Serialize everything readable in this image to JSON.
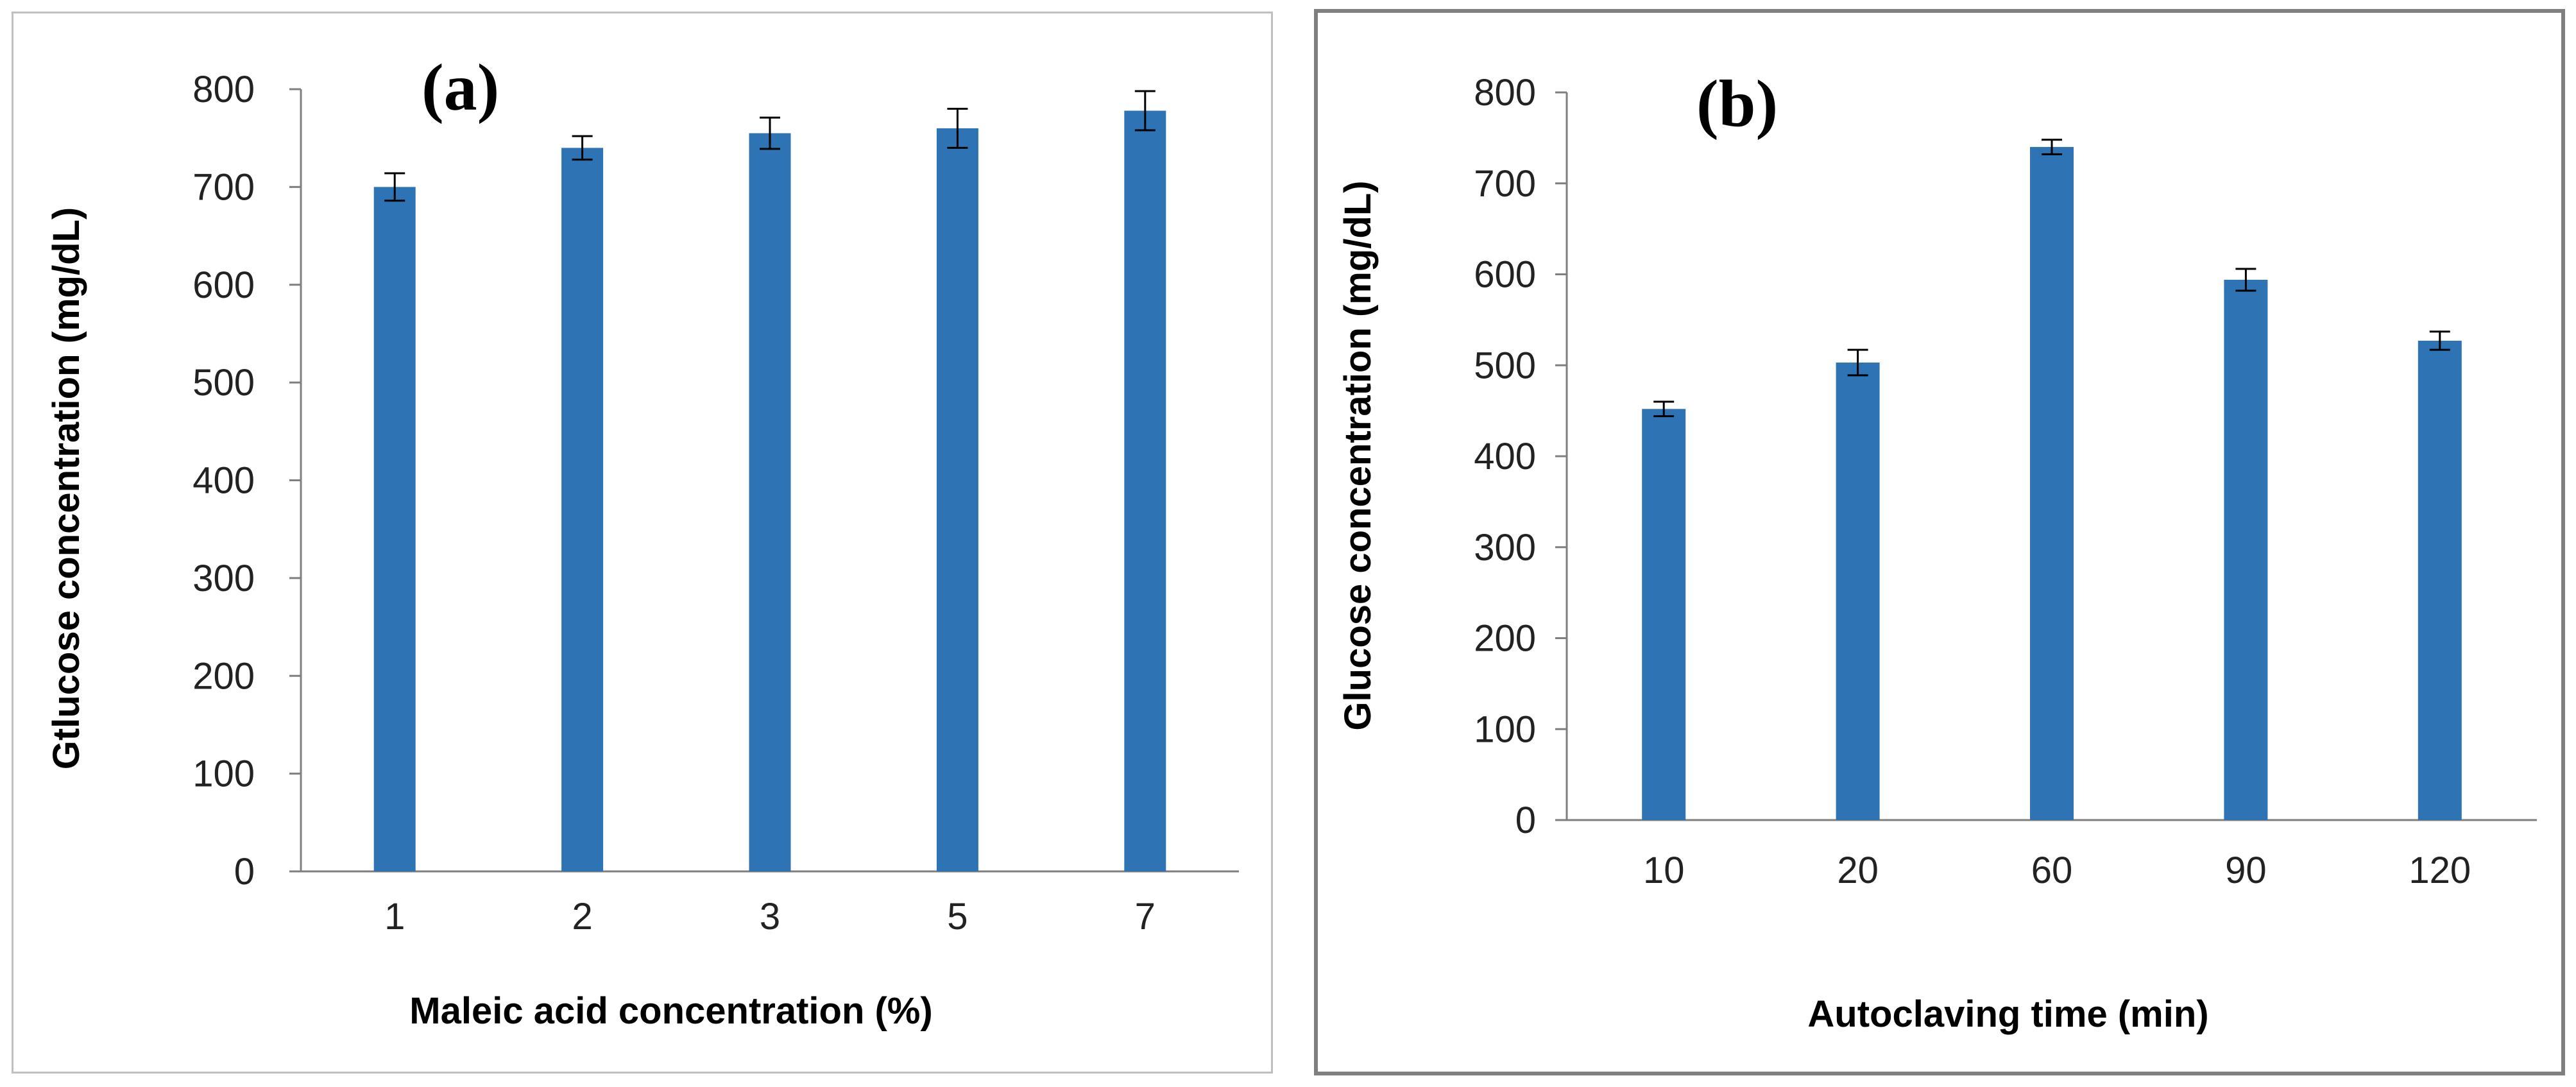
{
  "colors": {
    "bar": "#2e74b5",
    "axis": "#7f7f7f",
    "error": "#000000"
  },
  "chart_data": [
    {
      "type": "bar",
      "panel_label": "(a)",
      "categories": [
        "1",
        "2",
        "3",
        "5",
        "7"
      ],
      "values": [
        700,
        740,
        755,
        760,
        778
      ],
      "errors": [
        14,
        12,
        16,
        20,
        20
      ],
      "xlabel": "Maleic acid concentration (%)",
      "ylabel": "Gtlucose concentration (mg/dL)",
      "ylim": [
        0,
        800
      ],
      "yticks": [
        0,
        100,
        200,
        300,
        400,
        500,
        600,
        700,
        800
      ],
      "grid": false,
      "legend": "none"
    },
    {
      "type": "bar",
      "panel_label": "(b)",
      "categories": [
        "10",
        "20",
        "60",
        "90",
        "120"
      ],
      "values": [
        452,
        503,
        740,
        594,
        527
      ],
      "errors": [
        8,
        14,
        8,
        12,
        10
      ],
      "xlabel": "Autoclaving time (min)",
      "ylabel": "Glucose concentration (mg/dL)",
      "ylim": [
        0,
        800
      ],
      "yticks": [
        0,
        100,
        200,
        300,
        400,
        500,
        600,
        700,
        800
      ],
      "grid": false,
      "legend": "none"
    }
  ]
}
